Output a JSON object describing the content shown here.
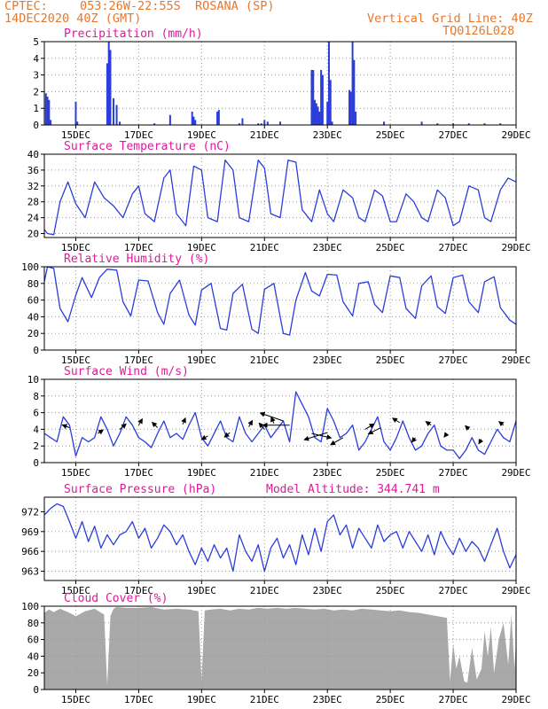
{
  "header": {
    "source": "CPTEC:",
    "location": "053:26W-22:55S  ROSANA (SP)",
    "run": "14DEC2020 40Z (GMT)",
    "grid_note": "Vertical Grid Line: 40Z",
    "code": "TQ0126L028"
  },
  "colors": {
    "header": "#e8772a",
    "title": "#e0199a",
    "series": "#2b3ddb",
    "cloud": "#a9a9a9",
    "grid": "#999999"
  },
  "x_axis": {
    "start_day": 14,
    "end_day": 29,
    "ticks": [
      {
        "day": 15,
        "label": "15DEC"
      },
      {
        "day": 17,
        "label": "17DEC"
      },
      {
        "day": 19,
        "label": "19DEC"
      },
      {
        "day": 21,
        "label": "21DEC"
      },
      {
        "day": 23,
        "label": "23DEC"
      },
      {
        "day": 25,
        "label": "25DEC"
      },
      {
        "day": 27,
        "label": "27DEC"
      },
      {
        "day": 29,
        "label": "29DEC"
      }
    ]
  },
  "chart_data": [
    {
      "id": "precip",
      "type": "bar",
      "title": "Precipitation (mm/h)",
      "ylim": [
        0,
        5
      ],
      "yticks": [
        "0",
        "1",
        "2",
        "3",
        "4",
        "5"
      ],
      "x": [
        14.05,
        14.1,
        14.15,
        14.2,
        15.0,
        15.05,
        16.0,
        16.05,
        16.1,
        16.2,
        16.3,
        16.4,
        17.5,
        18.0,
        18.7,
        18.75,
        18.8,
        19.5,
        19.55,
        20.2,
        20.3,
        20.8,
        20.9,
        21.0,
        21.1,
        21.5,
        22.5,
        22.55,
        22.6,
        22.65,
        22.7,
        22.75,
        22.8,
        22.85,
        23.0,
        23.05,
        23.1,
        23.15,
        23.7,
        23.75,
        23.8,
        23.85,
        23.9,
        24.8,
        26.0,
        26.5,
        27.0,
        27.5,
        28.0,
        28.5
      ],
      "values": [
        1.9,
        1.7,
        1.5,
        0.3,
        1.4,
        0.2,
        3.7,
        5.0,
        4.5,
        1.6,
        1.2,
        0.2,
        0.1,
        0.6,
        0.8,
        0.5,
        0.3,
        0.8,
        0.9,
        0.1,
        0.4,
        0.1,
        0.1,
        0.3,
        0.2,
        0.2,
        3.3,
        3.3,
        1.5,
        1.3,
        1.1,
        0.8,
        3.3,
        3.0,
        1.4,
        5.0,
        2.7,
        0.2,
        2.1,
        2.0,
        5.0,
        3.9,
        0.8,
        0.2,
        0.2,
        0.1,
        0.1,
        0.1,
        0.1,
        0.1
      ]
    },
    {
      "id": "temp",
      "type": "line",
      "title": "Surface Temperature (nC)",
      "ylim": [
        19,
        40
      ],
      "yticks": [
        "20",
        "24",
        "28",
        "32",
        "36",
        "40"
      ],
      "x": [
        14.0,
        14.1,
        14.3,
        14.5,
        14.75,
        15.0,
        15.3,
        15.6,
        15.9,
        16.2,
        16.5,
        16.8,
        17.0,
        17.2,
        17.5,
        17.8,
        18.0,
        18.2,
        18.5,
        18.75,
        19.0,
        19.2,
        19.5,
        19.75,
        20.0,
        20.2,
        20.5,
        20.8,
        21.0,
        21.2,
        21.5,
        21.75,
        22.0,
        22.2,
        22.5,
        22.75,
        23.0,
        23.2,
        23.5,
        23.8,
        24.0,
        24.2,
        24.5,
        24.75,
        25.0,
        25.2,
        25.5,
        25.75,
        26.0,
        26.2,
        26.5,
        26.75,
        27.0,
        27.2,
        27.5,
        27.8,
        28.0,
        28.2,
        28.5,
        28.75,
        29.0
      ],
      "values": [
        21,
        20,
        19.7,
        28,
        33,
        27.5,
        24,
        33,
        29,
        27,
        24,
        30,
        32,
        25,
        23,
        34,
        36,
        25,
        22,
        37,
        36,
        24,
        23,
        38.5,
        36,
        24,
        23,
        38.5,
        36.5,
        25,
        24,
        38.5,
        38,
        26,
        23,
        31,
        25,
        23,
        31,
        29,
        24,
        23,
        31,
        29.5,
        23,
        23,
        30,
        28,
        24,
        23,
        31,
        29,
        22,
        23,
        32,
        31,
        24,
        23,
        31,
        34,
        33
      ]
    },
    {
      "id": "rh",
      "type": "line",
      "title": "Relative Humidity (%)",
      "ylim": [
        0,
        100
      ],
      "yticks": [
        "0",
        "20",
        "40",
        "60",
        "80",
        "100"
      ],
      "x": [
        14.0,
        14.1,
        14.3,
        14.5,
        14.75,
        15.0,
        15.2,
        15.5,
        15.75,
        16.0,
        16.3,
        16.5,
        16.75,
        17.0,
        17.3,
        17.6,
        17.8,
        18.0,
        18.3,
        18.6,
        18.8,
        19.0,
        19.3,
        19.6,
        19.8,
        20.0,
        20.3,
        20.6,
        20.8,
        21.0,
        21.3,
        21.6,
        21.8,
        22.0,
        22.3,
        22.5,
        22.75,
        23.0,
        23.3,
        23.5,
        23.8,
        24.0,
        24.3,
        24.5,
        24.75,
        25.0,
        25.3,
        25.5,
        25.8,
        26.0,
        26.3,
        26.5,
        26.75,
        27.0,
        27.3,
        27.5,
        27.8,
        28.0,
        28.3,
        28.5,
        28.8,
        29.0
      ],
      "values": [
        82,
        100,
        98,
        50,
        34,
        66,
        87,
        63,
        87,
        97,
        96,
        58,
        41,
        84,
        83,
        45,
        31,
        68,
        84,
        42,
        30,
        72,
        80,
        26,
        24,
        68,
        79,
        25,
        20,
        73,
        80,
        20,
        18,
        60,
        93,
        71,
        65,
        91,
        90,
        58,
        41,
        80,
        82,
        55,
        45,
        89,
        87,
        50,
        38,
        77,
        89,
        52,
        44,
        87,
        90,
        58,
        45,
        82,
        88,
        51,
        36,
        31
      ]
    },
    {
      "id": "wind",
      "type": "line",
      "title": "Surface Wind (m/s)",
      "ylim": [
        0,
        10
      ],
      "yticks": [
        "0",
        "2",
        "4",
        "6",
        "8",
        "10"
      ],
      "x": [
        14.0,
        14.2,
        14.4,
        14.6,
        14.8,
        15.0,
        15.2,
        15.4,
        15.6,
        15.8,
        16.0,
        16.2,
        16.4,
        16.6,
        16.8,
        17.0,
        17.2,
        17.4,
        17.6,
        17.8,
        18.0,
        18.2,
        18.4,
        18.6,
        18.8,
        19.0,
        19.2,
        19.4,
        19.6,
        19.8,
        20.0,
        20.2,
        20.4,
        20.6,
        20.8,
        21.0,
        21.2,
        21.4,
        21.6,
        21.8,
        22.0,
        22.2,
        22.4,
        22.6,
        22.8,
        23.0,
        23.2,
        23.4,
        23.6,
        23.8,
        24.0,
        24.2,
        24.4,
        24.6,
        24.8,
        25.0,
        25.2,
        25.4,
        25.6,
        25.8,
        26.0,
        26.2,
        26.4,
        26.6,
        26.8,
        27.0,
        27.2,
        27.4,
        27.6,
        27.8,
        28.0,
        28.2,
        28.4,
        28.6,
        28.8,
        29.0
      ],
      "values": [
        3.5,
        3.0,
        2.5,
        5.5,
        4.5,
        0.8,
        3.0,
        2.5,
        3.0,
        5.5,
        4.0,
        2.0,
        3.5,
        5.5,
        4.5,
        3.0,
        2.5,
        1.8,
        3.5,
        5.0,
        3.0,
        3.5,
        2.8,
        4.5,
        6.0,
        3.0,
        2.0,
        3.5,
        5.0,
        3.0,
        2.5,
        5.5,
        3.5,
        2.5,
        3.5,
        4.5,
        3.0,
        4.0,
        5.0,
        2.5,
        8.5,
        7.0,
        5.5,
        3.0,
        2.5,
        6.5,
        5.0,
        3.0,
        3.5,
        4.5,
        1.5,
        2.5,
        4.0,
        5.5,
        2.5,
        1.5,
        3.0,
        5.0,
        3.0,
        1.5,
        2.0,
        3.5,
        4.5,
        2.0,
        1.5,
        1.5,
        0.5,
        1.5,
        3.0,
        1.5,
        1.0,
        2.5,
        4.0,
        3.0,
        2.5,
        5.0
      ]
    },
    {
      "id": "pressure",
      "type": "line",
      "title": "Surface Pressure (hPa)",
      "annotation": "Model Altitude: 344.741 m",
      "ylim": [
        961.6,
        974.2
      ],
      "yticks": [
        "963",
        "966",
        "969",
        "972"
      ],
      "x": [
        14.0,
        14.2,
        14.4,
        14.6,
        14.8,
        15.0,
        15.2,
        15.4,
        15.6,
        15.8,
        16.0,
        16.2,
        16.4,
        16.6,
        16.8,
        17.0,
        17.2,
        17.4,
        17.6,
        17.8,
        18.0,
        18.2,
        18.4,
        18.6,
        18.8,
        19.0,
        19.2,
        19.4,
        19.6,
        19.8,
        20.0,
        20.2,
        20.4,
        20.6,
        20.8,
        21.0,
        21.2,
        21.4,
        21.6,
        21.8,
        22.0,
        22.2,
        22.4,
        22.6,
        22.8,
        23.0,
        23.2,
        23.4,
        23.6,
        23.8,
        24.0,
        24.2,
        24.4,
        24.6,
        24.8,
        25.0,
        25.2,
        25.4,
        25.6,
        25.8,
        26.0,
        26.2,
        26.4,
        26.6,
        26.8,
        27.0,
        27.2,
        27.4,
        27.6,
        27.8,
        28.0,
        28.2,
        28.4,
        28.6,
        28.8,
        29.0
      ],
      "values": [
        971.5,
        972.5,
        973.2,
        972.8,
        970.5,
        968.0,
        970.5,
        967.5,
        969.8,
        966.5,
        968.5,
        967.0,
        968.5,
        969.0,
        970.5,
        968.0,
        969.5,
        966.5,
        968.0,
        970.0,
        969.0,
        967.0,
        968.5,
        966.0,
        964.0,
        966.5,
        964.5,
        967.0,
        965.0,
        966.5,
        963.0,
        968.5,
        966.0,
        964.5,
        967.0,
        963.0,
        966.5,
        968.0,
        965.0,
        967.0,
        964.0,
        968.5,
        965.5,
        969.5,
        966.0,
        970.5,
        971.5,
        968.5,
        970.0,
        966.5,
        969.5,
        968.0,
        966.5,
        970.0,
        967.5,
        968.5,
        969.0,
        966.5,
        969.0,
        967.5,
        966.0,
        968.5,
        965.5,
        969.0,
        967.0,
        965.5,
        968.0,
        966.0,
        967.5,
        966.5,
        964.5,
        967.0,
        969.5,
        966.0,
        963.5,
        965.5
      ]
    },
    {
      "id": "cloud",
      "type": "area",
      "title": "Cloud Cover (%)",
      "ylim": [
        0,
        100
      ],
      "yticks": [
        "0",
        "20",
        "40",
        "60",
        "80",
        "100"
      ],
      "x": [
        14.0,
        14.15,
        14.3,
        14.5,
        14.8,
        15.0,
        15.3,
        15.6,
        15.9,
        16.0,
        16.1,
        16.2,
        16.3,
        16.6,
        17.0,
        17.4,
        17.8,
        18.2,
        18.6,
        18.9,
        19.0,
        19.1,
        19.3,
        19.6,
        19.9,
        20.2,
        20.5,
        20.8,
        21.1,
        21.4,
        21.7,
        22.0,
        22.3,
        22.6,
        22.9,
        23.2,
        23.5,
        23.8,
        24.1,
        24.4,
        24.7,
        25.0,
        25.3,
        25.6,
        25.9,
        26.2,
        26.5,
        26.8,
        26.9,
        27.0,
        27.1,
        27.2,
        27.35,
        27.45,
        27.6,
        27.75,
        27.9,
        28.0,
        28.1,
        28.2,
        28.3,
        28.45,
        28.6,
        28.75,
        28.85,
        28.95,
        29.0
      ],
      "values": [
        92,
        96,
        93,
        97,
        92,
        88,
        94,
        97,
        90,
        5,
        88,
        97,
        99,
        98,
        98,
        99,
        96,
        97,
        96,
        94,
        10,
        95,
        96,
        97,
        95,
        97,
        96,
        98,
        97,
        98,
        97,
        98,
        97,
        96,
        97,
        95,
        96,
        95,
        97,
        96,
        95,
        94,
        95,
        93,
        92,
        90,
        88,
        86,
        10,
        55,
        25,
        40,
        10,
        8,
        50,
        12,
        25,
        70,
        40,
        75,
        20,
        60,
        80,
        30,
        90,
        25,
        60
      ]
    }
  ]
}
